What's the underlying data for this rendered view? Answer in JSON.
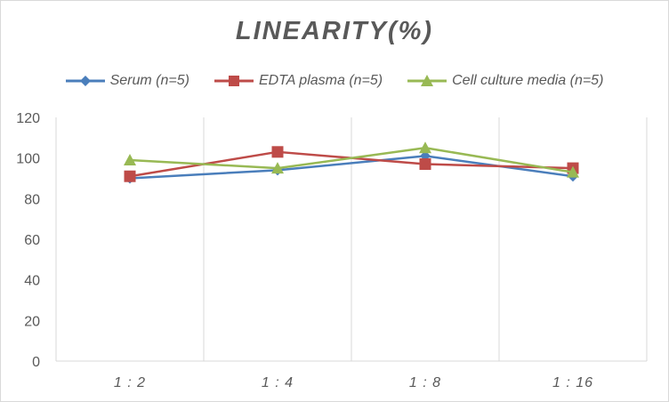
{
  "chart_data": {
    "type": "line",
    "title": "LINEARITY(%)",
    "categories": [
      "1:2",
      "1:4",
      "1:8",
      "1:16"
    ],
    "series": [
      {
        "name": "Serum (n=5)",
        "values": [
          90,
          94,
          101,
          91
        ],
        "color": "#4a7ebb",
        "marker": "diamond"
      },
      {
        "name": "EDTA plasma (n=5)",
        "values": [
          91,
          103,
          97,
          95
        ],
        "color": "#be4b48",
        "marker": "square"
      },
      {
        "name": "Cell culture media (n=5)",
        "values": [
          99,
          95,
          105,
          93
        ],
        "color": "#98b954",
        "marker": "triangle"
      }
    ],
    "ylim": [
      0,
      120
    ],
    "yticks": [
      0,
      20,
      40,
      60,
      80,
      100,
      120
    ],
    "grid": "vertical",
    "legend": "top"
  }
}
